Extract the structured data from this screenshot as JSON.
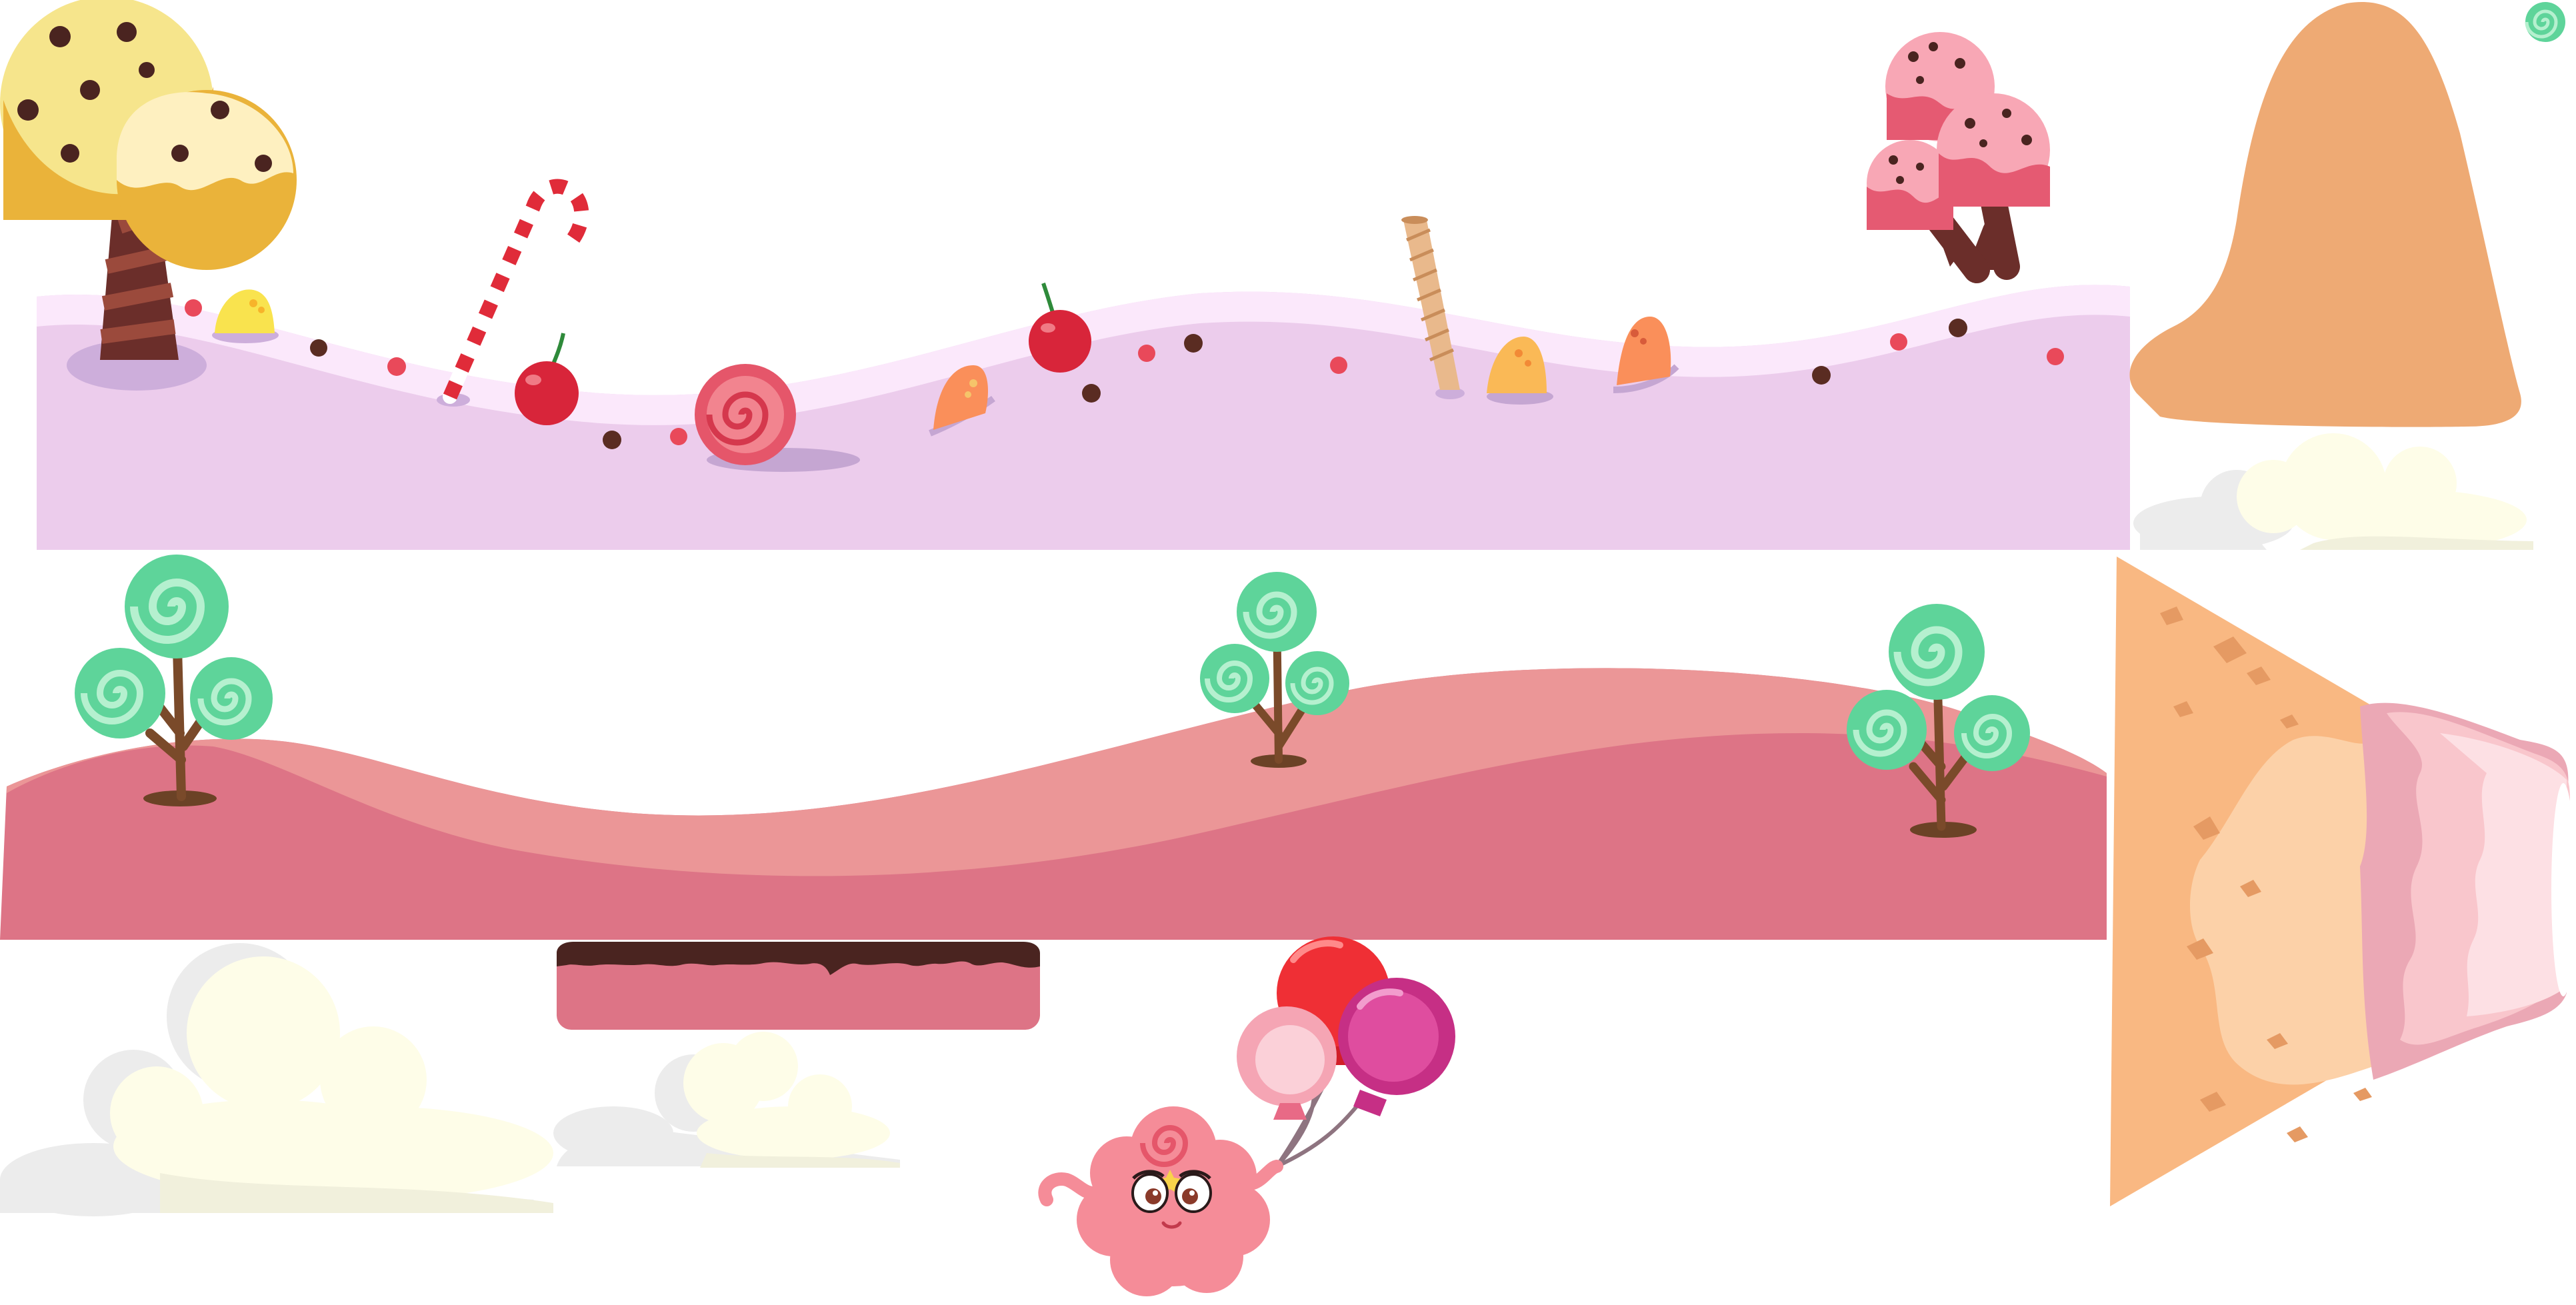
{
  "sprite_sheet": {
    "theme": "candy-land",
    "background_color": "#ffffff",
    "colors": {
      "lilac_ground": "#ecccec",
      "lilac_ground_highlight": "#fbe8fb",
      "pink_ground_dark": "#dd7486",
      "pink_ground_light": "#eb9697",
      "chocolate": "#4a2420",
      "tree_trunk": "#6b2e2a",
      "caramel_mountain": "#eeaa74",
      "ice_cream_cone": "#f9b882",
      "strawberry_ice_cream": "#f9c6cc",
      "lollipop_mint": "#5ed49a",
      "lollipop_mint_light": "#b5f0cf",
      "cloud_cream": "#fefde8",
      "cloud_gray": "#ececec",
      "cherry_red": "#d8253a",
      "balloon_red": "#ef2f35",
      "balloon_pink": "#f5a5b4",
      "balloon_magenta": "#df4d9f",
      "monster_pink": "#f58c98"
    },
    "sprites": [
      {
        "name": "yellow-ice-cream-tree",
        "kind": "tree",
        "frosting": "vanilla"
      },
      {
        "name": "candy-cane",
        "kind": "prop"
      },
      {
        "name": "cherry",
        "kind": "prop",
        "count": 2
      },
      {
        "name": "swirl-candy",
        "kind": "prop"
      },
      {
        "name": "gumdrop",
        "kind": "prop",
        "count": 4
      },
      {
        "name": "wafer-stick",
        "kind": "prop"
      },
      {
        "name": "strawberry-ice-cream-tree",
        "kind": "tree",
        "frosting": "strawberry"
      },
      {
        "name": "caramel-mountain",
        "kind": "backdrop"
      },
      {
        "name": "lilac-frosting-ground",
        "kind": "tile"
      },
      {
        "name": "lollipop-tree",
        "kind": "tree",
        "count": 3
      },
      {
        "name": "pink-hills-ground",
        "kind": "tile"
      },
      {
        "name": "ice-cream-cone-slope",
        "kind": "backdrop"
      },
      {
        "name": "chocolate-topped-platform",
        "kind": "platform"
      },
      {
        "name": "cloud",
        "kind": "backdrop",
        "count": 3
      },
      {
        "name": "pink-fluffy-monster-with-balloons",
        "kind": "character",
        "balloons": 3
      },
      {
        "name": "mint-swirl-icon",
        "kind": "icon"
      }
    ]
  }
}
